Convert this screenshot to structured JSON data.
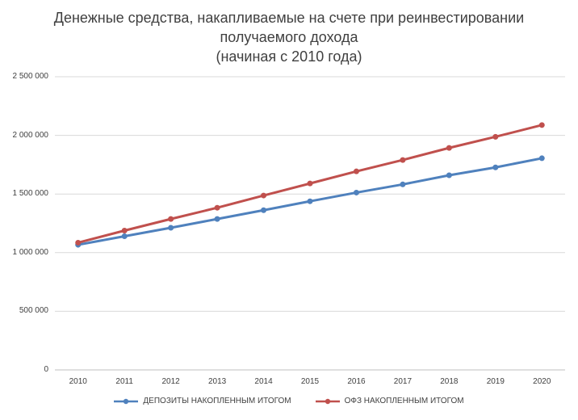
{
  "chart_data": {
    "type": "line",
    "title_lines": [
      "Денежные средства, накапливаемые на счете при реинвестировании",
      "получаемого дохода",
      "(начиная с 2010 года)"
    ],
    "x": [
      "2010",
      "2011",
      "2012",
      "2013",
      "2014",
      "2015",
      "2016",
      "2017",
      "2018",
      "2019",
      "2020"
    ],
    "y_ticks": [
      {
        "value": 0,
        "label": "0"
      },
      {
        "value": 500000,
        "label": "500 000"
      },
      {
        "value": 1000000,
        "label": "1 000 000"
      },
      {
        "value": 1500000,
        "label": "1 500 000"
      },
      {
        "value": 2000000,
        "label": "2 000 000"
      },
      {
        "value": 2500000,
        "label": "2 500 000"
      }
    ],
    "ylim": [
      0,
      2500000
    ],
    "grid": true,
    "legend_position": "bottom",
    "series": [
      {
        "name": "ДЕПОЗИТЫ НАКОПЛЕННЫМ ИТОГОМ",
        "color": "#4F81BD",
        "values": [
          1067000,
          1140000,
          1212000,
          1287000,
          1362000,
          1438000,
          1512000,
          1582000,
          1660000,
          1727000,
          1805000
        ]
      },
      {
        "name": "ОФЗ НАКОПЛЕННЫМ ИТОГОМ",
        "color": "#C0504D",
        "values": [
          1085000,
          1188000,
          1287000,
          1383000,
          1487000,
          1590000,
          1693000,
          1790000,
          1893000,
          1988000,
          2088000
        ]
      }
    ]
  }
}
